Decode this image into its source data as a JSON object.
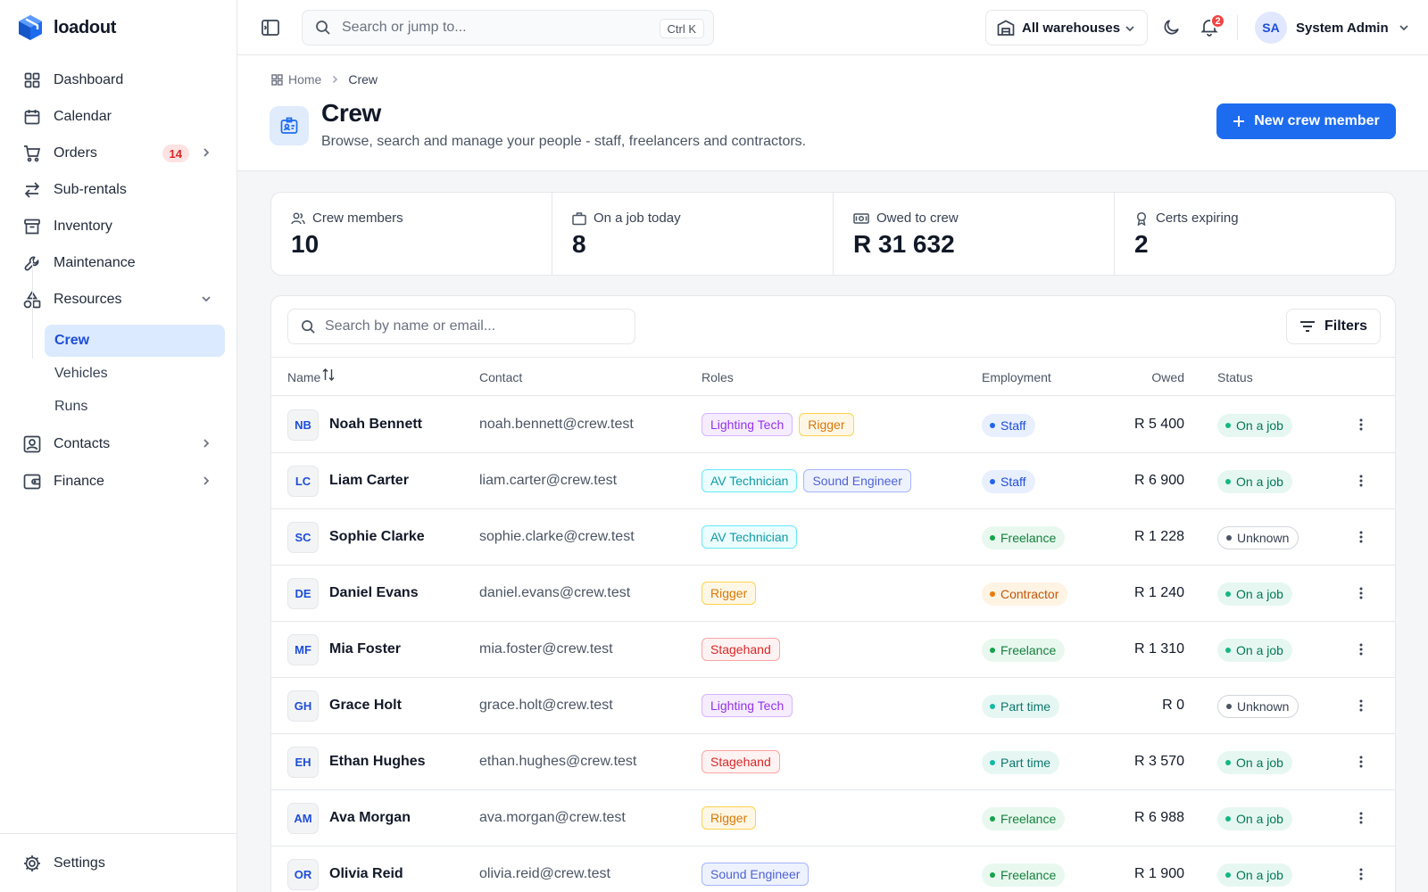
{
  "app": {
    "name": "loadout"
  },
  "sidebar": {
    "items": [
      {
        "label": "Dashboard",
        "icon": "grid-icon"
      },
      {
        "label": "Calendar",
        "icon": "calendar-icon"
      },
      {
        "label": "Orders",
        "icon": "cart-icon",
        "badge": "14"
      },
      {
        "label": "Sub-rentals",
        "icon": "arrows-icon"
      },
      {
        "label": "Inventory",
        "icon": "archive-icon"
      },
      {
        "label": "Maintenance",
        "icon": "wrench-icon"
      },
      {
        "label": "Resources",
        "icon": "shapes-icon"
      }
    ],
    "subitems": [
      {
        "label": "Crew",
        "active": true
      },
      {
        "label": "Vehicles"
      },
      {
        "label": "Runs"
      }
    ],
    "more": [
      {
        "label": "Contacts",
        "icon": "contact-card-icon"
      },
      {
        "label": "Finance",
        "icon": "wallet-icon"
      }
    ],
    "settings_label": "Settings"
  },
  "topbar": {
    "search_placeholder": "Search or jump to...",
    "shortcut": "Ctrl K",
    "warehouse": "All warehouses",
    "notifications": "2",
    "user_initials": "SA",
    "user_name": "System Admin"
  },
  "header": {
    "breadcrumb_home": "Home",
    "breadcrumb_current": "Crew",
    "title": "Crew",
    "subtitle": "Browse, search and manage your people - staff, freelancers and contractors.",
    "new_button": "New crew member"
  },
  "stats": [
    {
      "label": "Crew members",
      "value": "10",
      "icon": "users-icon"
    },
    {
      "label": "On a job today",
      "value": "8",
      "icon": "briefcase-icon"
    },
    {
      "label": "Owed to crew",
      "value": "R 31 632",
      "icon": "banknote-icon"
    },
    {
      "label": "Certs expiring",
      "value": "2",
      "icon": "award-icon"
    }
  ],
  "table": {
    "search_placeholder": "Search by name or email...",
    "filters_label": "Filters",
    "columns": {
      "name": "Name",
      "contact": "Contact",
      "roles": "Roles",
      "employment": "Employment",
      "owed": "Owed",
      "status": "Status"
    },
    "rows": [
      {
        "initials": "NB",
        "name": "Noah Bennett",
        "email": "noah.bennett@crew.test",
        "roles": [
          "Lighting Tech",
          "Rigger"
        ],
        "employment": "Staff",
        "owed": "R 5 400",
        "status": "On a job"
      },
      {
        "initials": "LC",
        "name": "Liam Carter",
        "email": "liam.carter@crew.test",
        "roles": [
          "AV Technician",
          "Sound Engineer"
        ],
        "employment": "Staff",
        "owed": "R 6 900",
        "status": "On a job"
      },
      {
        "initials": "SC",
        "name": "Sophie Clarke",
        "email": "sophie.clarke@crew.test",
        "roles": [
          "AV Technician"
        ],
        "employment": "Freelance",
        "owed": "R 1 228",
        "status": "Unknown"
      },
      {
        "initials": "DE",
        "name": "Daniel Evans",
        "email": "daniel.evans@crew.test",
        "roles": [
          "Rigger"
        ],
        "employment": "Contractor",
        "owed": "R 1 240",
        "status": "On a job"
      },
      {
        "initials": "MF",
        "name": "Mia Foster",
        "email": "mia.foster@crew.test",
        "roles": [
          "Stagehand"
        ],
        "employment": "Freelance",
        "owed": "R 1 310",
        "status": "On a job"
      },
      {
        "initials": "GH",
        "name": "Grace Holt",
        "email": "grace.holt@crew.test",
        "roles": [
          "Lighting Tech"
        ],
        "employment": "Part time",
        "owed": "R 0",
        "status": "Unknown"
      },
      {
        "initials": "EH",
        "name": "Ethan Hughes",
        "email": "ethan.hughes@crew.test",
        "roles": [
          "Stagehand"
        ],
        "employment": "Part time",
        "owed": "R 3 570",
        "status": "On a job"
      },
      {
        "initials": "AM",
        "name": "Ava Morgan",
        "email": "ava.morgan@crew.test",
        "roles": [
          "Rigger"
        ],
        "employment": "Freelance",
        "owed": "R 6 988",
        "status": "On a job"
      },
      {
        "initials": "OR",
        "name": "Olivia Reid",
        "email": "olivia.reid@crew.test",
        "roles": [
          "Sound Engineer"
        ],
        "employment": "Freelance",
        "owed": "R 1 900",
        "status": "On a job"
      }
    ]
  },
  "colors": {
    "accent": "#1d6cf0",
    "role_styles": {
      "Lighting Tech": {
        "bg": "#f5ecfe",
        "border": "#d8b4fe",
        "fg": "#9333ea"
      },
      "Rigger": {
        "bg": "#fff7e6",
        "border": "#fcd34d",
        "fg": "#d97706"
      },
      "AV Technician": {
        "bg": "#ecfeff",
        "border": "#67e8f9",
        "fg": "#0e9aa7"
      },
      "Sound Engineer": {
        "bg": "#eef2ff",
        "border": "#a5b4fc",
        "fg": "#4f63d2"
      },
      "Stagehand": {
        "bg": "#fef2f2",
        "border": "#fca5a5",
        "fg": "#dc2626"
      }
    },
    "employment_styles": {
      "Staff": {
        "bg": "#e8efff",
        "fg": "#1d4ed8",
        "dot": "#2563eb"
      },
      "Freelance": {
        "bg": "#e8f8ef",
        "fg": "#15803d",
        "dot": "#16a34a"
      },
      "Contractor": {
        "bg": "#fff3e3",
        "fg": "#c2570c",
        "dot": "#ea7a0c"
      },
      "Part time": {
        "bg": "#e6f7f3",
        "fg": "#0f766e",
        "dot": "#14b8a6"
      }
    },
    "status_styles": {
      "On a job": {
        "bg": "#e6f7f1",
        "fg": "#047857",
        "dot": "#10b981"
      },
      "Unknown": {
        "bg": "#ffffff",
        "fg": "#374151",
        "dot": "#4b5563"
      }
    }
  }
}
